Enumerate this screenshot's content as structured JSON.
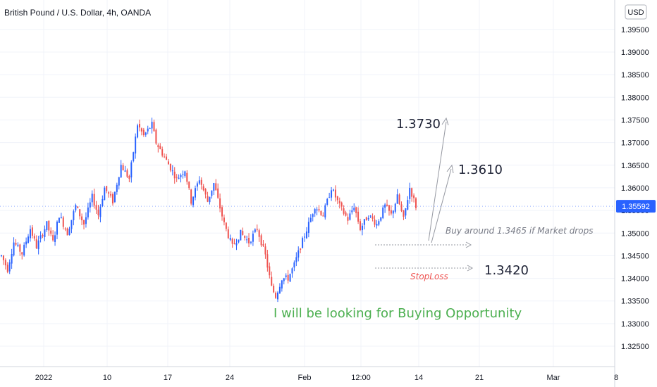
{
  "chart_data": {
    "type": "candlestick",
    "title": "British Pound / U.S. Dollar, 4h, OANDA",
    "currency": "USD",
    "current_price": "1.35592",
    "ylim": [
      1.3205,
      1.4015
    ],
    "y_ticks": [
      "1.32500",
      "1.33000",
      "1.33500",
      "1.34000",
      "1.34500",
      "1.35000",
      "1.35500",
      "1.36000",
      "1.36500",
      "1.37000",
      "1.37500",
      "1.38000",
      "1.38500",
      "1.39000",
      "1.39500"
    ],
    "x_ticks": [
      "2022",
      "10",
      "17",
      "24",
      "Feb",
      "12:00",
      "14",
      "21",
      "Mar",
      "8"
    ],
    "grid": true,
    "price_path": [
      [
        0,
        1.345
      ],
      [
        3,
        1.342
      ],
      [
        6,
        1.348
      ],
      [
        10,
        1.3455
      ],
      [
        14,
        1.351
      ],
      [
        17,
        1.347
      ],
      [
        22,
        1.352
      ],
      [
        25,
        1.348
      ],
      [
        28,
        1.354
      ],
      [
        32,
        1.35
      ],
      [
        36,
        1.356
      ],
      [
        40,
        1.352
      ],
      [
        44,
        1.358
      ],
      [
        47,
        1.354
      ],
      [
        50,
        1.36
      ],
      [
        54,
        1.357
      ],
      [
        58,
        1.365
      ],
      [
        62,
        1.362
      ],
      [
        66,
        1.374
      ],
      [
        69,
        1.3715
      ],
      [
        73,
        1.374
      ],
      [
        75,
        1.37
      ],
      [
        80,
        1.366
      ],
      [
        85,
        1.362
      ],
      [
        89,
        1.364
      ],
      [
        92,
        1.357
      ],
      [
        96,
        1.362
      ],
      [
        100,
        1.357
      ],
      [
        103,
        1.361
      ],
      [
        108,
        1.352
      ],
      [
        112,
        1.347
      ],
      [
        116,
        1.35
      ],
      [
        120,
        1.348
      ],
      [
        124,
        1.351
      ],
      [
        128,
        1.345
      ],
      [
        131,
        1.338
      ],
      [
        133,
        1.336
      ],
      [
        136,
        1.34
      ],
      [
        139,
        1.34
      ],
      [
        142,
        1.343
      ],
      [
        145,
        1.347
      ],
      [
        149,
        1.352
      ],
      [
        152,
        1.356
      ],
      [
        156,
        1.354
      ],
      [
        160,
        1.36
      ],
      [
        164,
        1.356
      ],
      [
        168,
        1.353
      ],
      [
        171,
        1.356
      ],
      [
        174,
        1.351
      ],
      [
        178,
        1.354
      ],
      [
        182,
        1.352
      ],
      [
        186,
        1.356
      ],
      [
        189,
        1.354
      ],
      [
        192,
        1.358
      ],
      [
        195,
        1.353
      ],
      [
        198,
        1.36
      ],
      [
        201,
        1.3559
      ]
    ],
    "annotations": {
      "target1": "1.3730",
      "target2": "1.3610",
      "buy_note": "Buy around 1.3465 if Market drops",
      "stoploss_level": "1.3420",
      "stoploss_label": "StopLoss",
      "headline": "I will be looking for Buying Opportunity"
    },
    "colors": {
      "up": "#2962ff",
      "down": "#ef5350",
      "price_tag": "#2962ff",
      "annotation": "#4caf50"
    }
  }
}
